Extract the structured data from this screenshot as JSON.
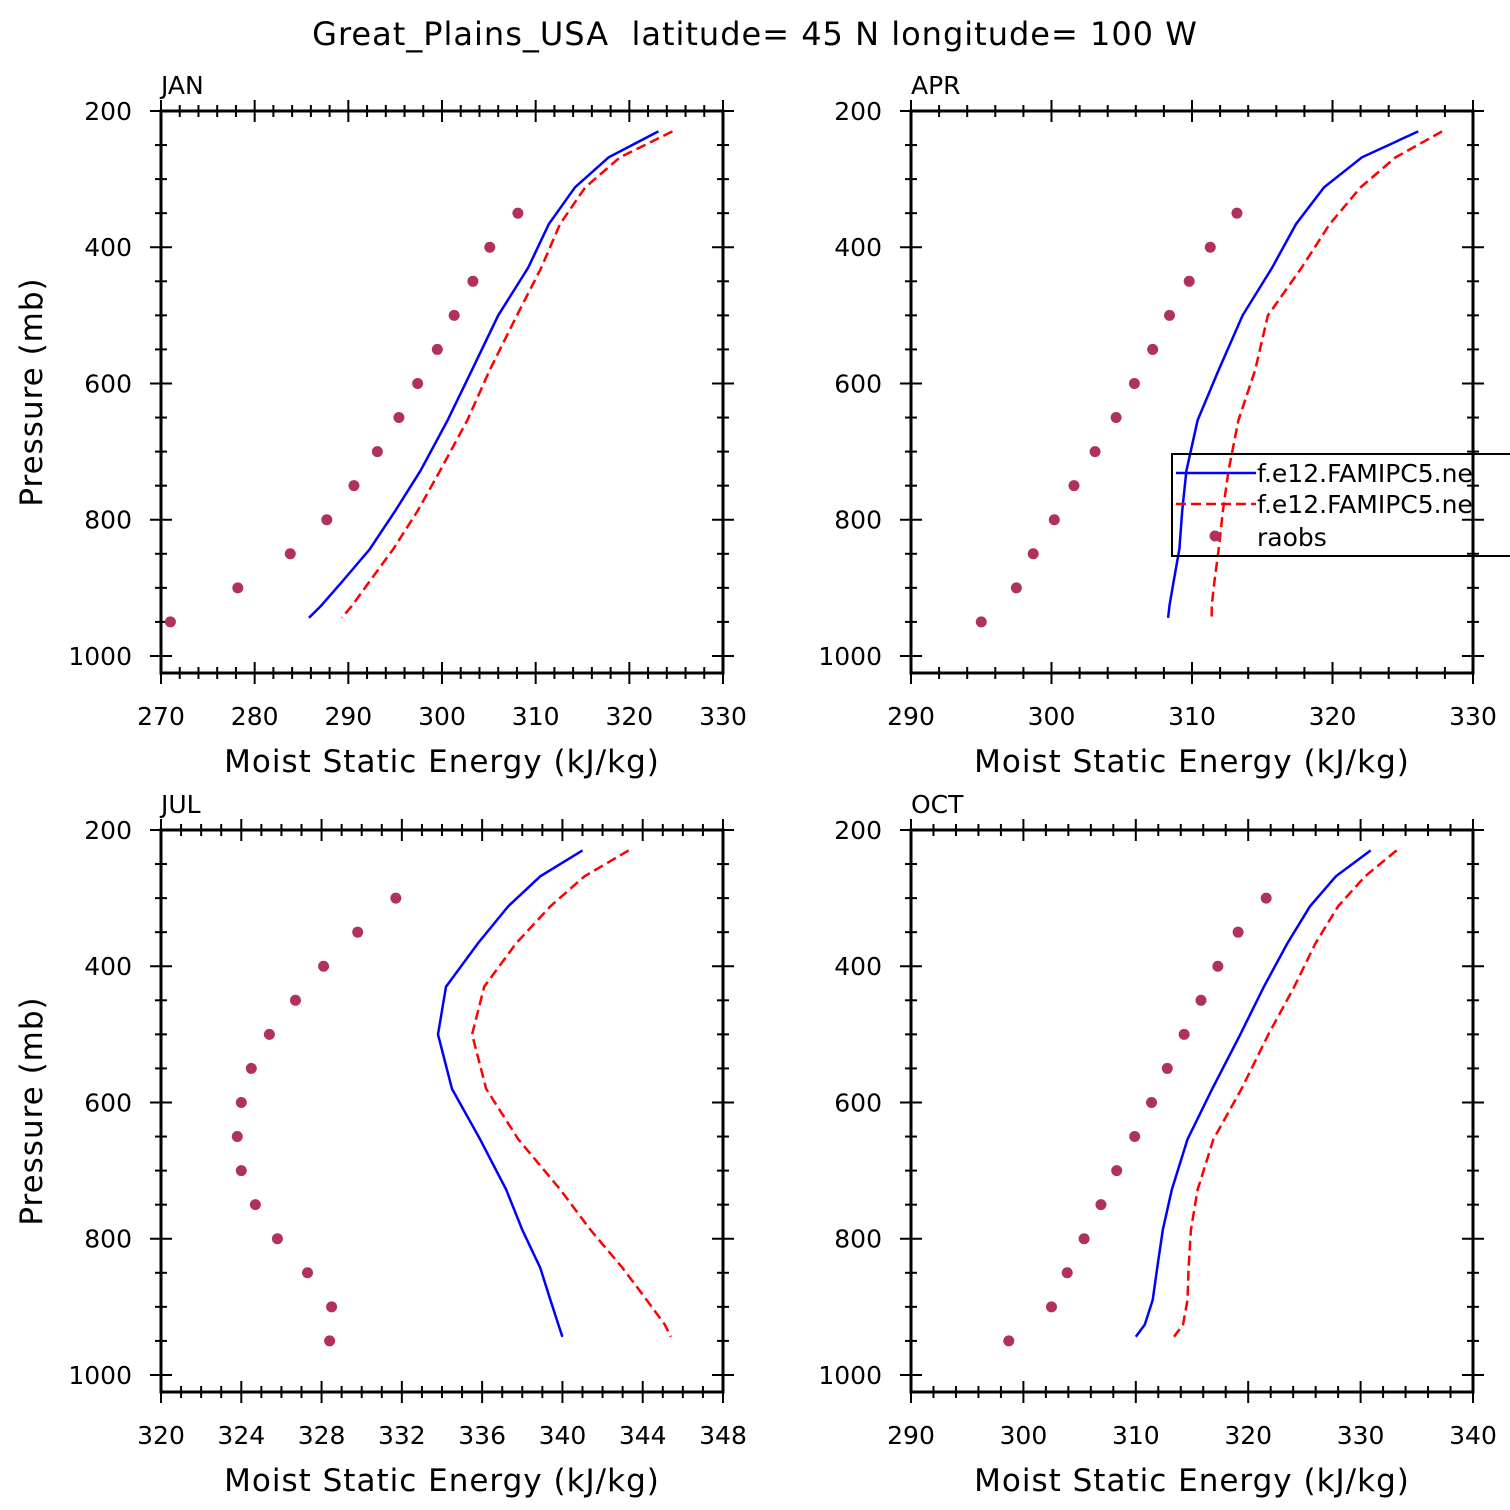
{
  "colors": {
    "model_a": "#0000ff",
    "model_b": "#ff0000",
    "raobs": "#b03060",
    "axes": "#000000"
  },
  "chart_data": {
    "type": "line",
    "title": "Great_Plains_USA  latitude= 45 N longitude= 100 W",
    "ylabel": "Pressure (mb)",
    "xlabel": "Moist Static Energy (kJ/kg)",
    "ylim": [
      200,
      1025
    ],
    "y_ticks": [
      200,
      400,
      600,
      800,
      1000
    ],
    "y_reversed": true,
    "grid": false,
    "legend": {
      "placement": "APR panel, middle-right (clipped at image edge)",
      "entries": [
        "f.e12.FAMIPC5.ne",
        "f.e12.FAMIPC5.ne",
        "raobs"
      ]
    },
    "model_pressure": [
      230,
      268,
      312,
      366,
      430,
      500,
      580,
      654,
      728,
      787,
      843,
      890,
      926,
      944
    ],
    "panels": [
      {
        "title": "JAN",
        "xlim": [
          270,
          330
        ],
        "x_ticks": [
          270,
          280,
          290,
          300,
          310,
          320,
          330
        ],
        "x_minor_step": 2,
        "obs_pressure": [
          350,
          400,
          450,
          500,
          550,
          600,
          650,
          700,
          750,
          800,
          850,
          900,
          950
        ],
        "series": [
          {
            "name": "f.e12.FAMIPC5.ne",
            "style": "solid",
            "values": [
              323.1,
              317.8,
              314.2,
              311.4,
              309.2,
              306.0,
              303.2,
              300.6,
              297.7,
              295.0,
              292.3,
              289.4,
              287.1,
              285.8
            ]
          },
          {
            "name": "f.e12.FAMIPC5.ne",
            "style": "dashed",
            "values": [
              324.6,
              319.0,
              315.3,
              312.6,
              310.6,
              308.0,
              305.1,
              302.7,
              299.8,
              297.4,
              294.8,
              292.3,
              290.4,
              289.3
            ]
          },
          {
            "name": "raobs",
            "style": "markers",
            "values": [
              308.1,
              305.1,
              303.3,
              301.3,
              299.5,
              297.4,
              295.4,
              293.1,
              290.6,
              287.7,
              283.8,
              278.2,
              271.0
            ]
          }
        ]
      },
      {
        "title": "APR",
        "xlim": [
          290,
          330
        ],
        "x_ticks": [
          290,
          300,
          310,
          320,
          330
        ],
        "x_minor_step": 2,
        "obs_pressure": [
          350,
          400,
          450,
          500,
          550,
          600,
          650,
          700,
          750,
          800,
          850,
          900,
          950
        ],
        "series": [
          {
            "name": "f.e12.FAMIPC5.ne",
            "style": "solid",
            "values": [
              326.1,
              322.1,
              319.4,
              317.4,
              315.7,
              313.6,
              311.9,
              310.4,
              309.6,
              309.3,
              309.1,
              308.7,
              308.4,
              308.3
            ]
          },
          {
            "name": "f.e12.FAMIPC5.ne",
            "style": "dashed",
            "values": [
              327.8,
              324.5,
              322.0,
              319.8,
              317.8,
              315.4,
              314.5,
              313.3,
              312.6,
              312.2,
              311.9,
              311.6,
              311.4,
              311.4
            ]
          },
          {
            "name": "raobs",
            "style": "markers",
            "values": [
              313.2,
              311.3,
              309.8,
              308.4,
              307.2,
              305.9,
              304.6,
              303.1,
              301.6,
              300.2,
              298.7,
              297.5,
              295.0
            ]
          }
        ]
      },
      {
        "title": "JUL",
        "xlim": [
          320,
          348
        ],
        "x_ticks": [
          320,
          324,
          328,
          332,
          336,
          340,
          344,
          348
        ],
        "x_minor_step": 1,
        "obs_pressure": [
          300,
          350,
          400,
          450,
          500,
          550,
          600,
          650,
          700,
          750,
          800,
          850,
          900,
          950
        ],
        "series": [
          {
            "name": "f.e12.FAMIPC5.ne",
            "style": "solid",
            "values": [
              341.0,
              338.9,
              337.3,
              335.8,
              334.2,
              333.8,
              334.5,
              335.9,
              337.2,
              338.0,
              338.9,
              339.4,
              339.8,
              340.0
            ]
          },
          {
            "name": "f.e12.FAMIPC5.ne",
            "style": "dashed",
            "values": [
              343.3,
              341.1,
              339.4,
              337.7,
              336.1,
              335.5,
              336.2,
              337.8,
              339.9,
              341.4,
              343.0,
              344.2,
              345.1,
              345.4
            ]
          },
          {
            "name": "raobs",
            "style": "markers",
            "values": [
              331.7,
              329.8,
              328.1,
              326.7,
              325.4,
              324.5,
              324.0,
              323.8,
              324.0,
              324.7,
              325.8,
              327.3,
              328.5,
              328.4
            ]
          }
        ]
      },
      {
        "title": "OCT",
        "xlim": [
          290,
          340
        ],
        "x_ticks": [
          290,
          300,
          310,
          320,
          330,
          340
        ],
        "x_minor_step": 2,
        "obs_pressure": [
          300,
          350,
          400,
          450,
          500,
          550,
          600,
          650,
          700,
          750,
          800,
          850,
          900,
          950
        ],
        "series": [
          {
            "name": "f.e12.FAMIPC5.ne",
            "style": "solid",
            "values": [
              330.9,
              327.8,
              325.5,
              323.5,
              321.4,
              319.3,
              316.8,
              314.6,
              313.2,
              312.4,
              311.9,
              311.5,
              310.8,
              310.0
            ]
          },
          {
            "name": "f.e12.FAMIPC5.ne",
            "style": "dashed",
            "values": [
              333.2,
              330.4,
              328.0,
              326.0,
              324.1,
              321.8,
              319.4,
              316.9,
              315.5,
              314.9,
              314.7,
              314.6,
              314.2,
              313.4
            ]
          },
          {
            "name": "raobs",
            "style": "markers",
            "values": [
              321.6,
              319.1,
              317.3,
              315.8,
              314.3,
              312.8,
              311.4,
              309.9,
              308.3,
              306.9,
              305.4,
              303.9,
              302.5,
              298.7
            ]
          }
        ]
      }
    ]
  }
}
